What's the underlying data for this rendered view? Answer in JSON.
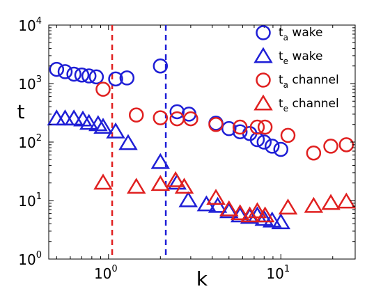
{
  "chart_data": {
    "type": "scatter",
    "xlabel": "k",
    "ylabel": "t",
    "xscale": "log",
    "yscale": "log",
    "xlim": [
      0.45,
      27
    ],
    "ylim": [
      1,
      10000
    ],
    "x_ticks": [
      {
        "base": "10",
        "exp": "0",
        "value": 1
      },
      {
        "base": "10",
        "exp": "1",
        "value": 10
      }
    ],
    "y_ticks": [
      {
        "base": "10",
        "exp": "0",
        "value": 1
      },
      {
        "base": "10",
        "exp": "1",
        "value": 10
      },
      {
        "base": "10",
        "exp": "2",
        "value": 100
      },
      {
        "base": "10",
        "exp": "3",
        "value": 1000
      },
      {
        "base": "10",
        "exp": "4",
        "value": 10000
      }
    ],
    "legend_position": "top-right",
    "vlines": [
      {
        "x": 1.05,
        "color": "#e02020",
        "style": "dashed"
      },
      {
        "x": 2.15,
        "color": "#1f1fd6",
        "style": "dashed"
      }
    ],
    "series": [
      {
        "name_main": "t",
        "name_sub": "a",
        "name_rest": "wake",
        "marker": "circle",
        "color": "#1f1fd6",
        "points": [
          [
            0.5,
            1750
          ],
          [
            0.56,
            1600
          ],
          [
            0.63,
            1450
          ],
          [
            0.7,
            1400
          ],
          [
            0.77,
            1350
          ],
          [
            0.85,
            1300
          ],
          [
            1.1,
            1200
          ],
          [
            1.28,
            1250
          ],
          [
            2.0,
            2000
          ],
          [
            2.5,
            330
          ],
          [
            2.93,
            300
          ],
          [
            4.2,
            210
          ],
          [
            5.0,
            170
          ],
          [
            5.8,
            150
          ],
          [
            6.6,
            140
          ],
          [
            7.3,
            110
          ],
          [
            8.0,
            100
          ],
          [
            8.9,
            85
          ],
          [
            10.0,
            75
          ]
        ]
      },
      {
        "name_main": "t",
        "name_sub": "e",
        "name_rest": "wake",
        "marker": "triangle",
        "color": "#1f1fd6",
        "points": [
          [
            0.5,
            250
          ],
          [
            0.56,
            250
          ],
          [
            0.63,
            250
          ],
          [
            0.71,
            240
          ],
          [
            0.77,
            210
          ],
          [
            0.87,
            200
          ],
          [
            0.93,
            180
          ],
          [
            1.1,
            150
          ],
          [
            1.3,
            95
          ],
          [
            2.0,
            45
          ],
          [
            2.5,
            20
          ],
          [
            2.9,
            10
          ],
          [
            3.7,
            8.5
          ],
          [
            4.3,
            8
          ],
          [
            5.0,
            6.5
          ],
          [
            5.8,
            5.5
          ],
          [
            6.6,
            5.2
          ],
          [
            7.3,
            5.5
          ],
          [
            8.0,
            4.8
          ],
          [
            8.9,
            4.5
          ],
          [
            10.0,
            4.2
          ]
        ]
      },
      {
        "name_main": "t",
        "name_sub": "a",
        "name_rest": "channel",
        "marker": "circle",
        "color": "#e02020",
        "points": [
          [
            0.93,
            800
          ],
          [
            1.45,
            290
          ],
          [
            2.0,
            260
          ],
          [
            2.5,
            250
          ],
          [
            3.0,
            250
          ],
          [
            4.2,
            200
          ],
          [
            5.8,
            180
          ],
          [
            7.3,
            180
          ],
          [
            8.1,
            180
          ],
          [
            11.0,
            130
          ],
          [
            15.5,
            65
          ],
          [
            19.5,
            85
          ],
          [
            24.0,
            90
          ]
        ]
      },
      {
        "name_main": "t",
        "name_sub": "e",
        "name_rest": "channel",
        "marker": "triangle",
        "color": "#e02020",
        "points": [
          [
            0.93,
            20
          ],
          [
            1.45,
            17
          ],
          [
            2.0,
            19
          ],
          [
            2.45,
            22
          ],
          [
            2.75,
            17
          ],
          [
            4.2,
            11
          ],
          [
            5.0,
            7
          ],
          [
            5.8,
            6
          ],
          [
            6.6,
            5.5
          ],
          [
            7.3,
            6.5
          ],
          [
            8.1,
            5.5
          ],
          [
            11.0,
            7.5
          ],
          [
            15.5,
            8
          ],
          [
            19.5,
            9
          ],
          [
            24.0,
            9.5
          ]
        ]
      }
    ]
  }
}
